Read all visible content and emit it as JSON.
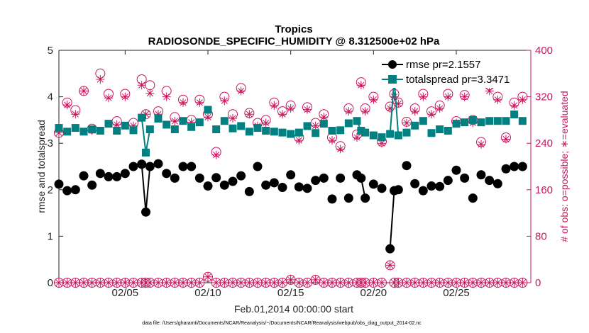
{
  "chart_data": {
    "type": "line",
    "title": "Tropics",
    "subtitle": "RADIOSONDE_SPECIFIC_HUMIDITY @ 8.312500e+02 hPa",
    "xlabel": "Feb.01,2014 00:00:00 start",
    "ylabel": "rmse and totalspread",
    "ylabel_right": "# of obs: o=possible; ∗=evaluated",
    "footnote": "data file: /Users/gharamti/Documents/NCAR/Reanalysis/~/Documents/NCAR/Reanalysis/webpub/obs_diag_output_2014-02.nc",
    "xlim": [
      1,
      29.5
    ],
    "ylim": [
      0,
      5
    ],
    "ylim_right": [
      0,
      400
    ],
    "x_ticks": [
      5,
      10,
      15,
      20,
      25
    ],
    "x_tick_labels": [
      "02/05",
      "02/10",
      "02/15",
      "02/20",
      "02/25"
    ],
    "y_ticks": [
      0,
      1,
      2,
      3,
      4,
      5
    ],
    "y_tick_labels": [
      "0",
      "1",
      "2",
      "3",
      "4",
      "5"
    ],
    "y_right_ticks": [
      0,
      80,
      160,
      240,
      320,
      400
    ],
    "y_right_tick_labels": [
      "0",
      "80",
      "160",
      "240",
      "320",
      "400"
    ],
    "legend_position": "top-right",
    "colors": {
      "rmse": "#000000",
      "spread": "#008080",
      "obs": "#c8175e"
    },
    "x": [
      1.0,
      1.5,
      2.0,
      2.5,
      3.0,
      3.5,
      4.0,
      4.5,
      5.0,
      5.5,
      6.0,
      6.25,
      6.5,
      7.0,
      7.5,
      8.0,
      8.5,
      9.0,
      9.5,
      10.0,
      10.5,
      11.0,
      11.5,
      12.0,
      12.5,
      13.0,
      13.5,
      14.0,
      14.5,
      15.0,
      15.5,
      16.0,
      16.5,
      17.0,
      17.5,
      18.0,
      18.5,
      19.0,
      19.25,
      19.5,
      20.0,
      20.5,
      21.0,
      21.25,
      21.5,
      22.0,
      22.5,
      23.0,
      23.5,
      24.0,
      24.5,
      25.0,
      25.5,
      26.0,
      26.5,
      27.0,
      27.5,
      28.0,
      28.5,
      29.0
    ],
    "series": [
      {
        "name": "rmse pr=2.1557",
        "legend": "rmse pr=2.1557",
        "values": [
          2.12,
          1.98,
          2.0,
          2.3,
          2.1,
          2.35,
          2.28,
          2.28,
          2.35,
          2.5,
          2.55,
          1.52,
          2.5,
          2.56,
          2.35,
          2.25,
          2.5,
          2.5,
          2.25,
          2.08,
          2.26,
          2.1,
          2.18,
          2.3,
          1.96,
          2.5,
          2.1,
          2.15,
          2.05,
          2.32,
          2.06,
          2.03,
          2.2,
          2.25,
          1.8,
          2.25,
          1.82,
          2.32,
          2.25,
          1.82,
          2.12,
          2.03,
          0.73,
          1.98,
          2.0,
          2.52,
          2.13,
          1.98,
          2.08,
          2.07,
          2.2,
          2.42,
          2.25,
          1.82,
          2.32,
          2.2,
          2.13,
          2.45,
          2.5,
          2.5
        ]
      },
      {
        "name": "totalspread pr=3.3471",
        "legend": "totalspread pr=3.3471",
        "values": [
          3.33,
          3.25,
          3.33,
          3.25,
          3.3,
          3.27,
          3.42,
          3.27,
          3.38,
          3.28,
          3.55,
          2.8,
          3.3,
          3.53,
          3.4,
          3.3,
          3.48,
          3.35,
          3.45,
          3.72,
          3.3,
          3.48,
          3.32,
          3.37,
          3.25,
          3.33,
          3.27,
          3.25,
          3.23,
          3.2,
          3.23,
          3.37,
          3.22,
          3.42,
          3.27,
          3.28,
          3.43,
          3.48,
          3.27,
          3.23,
          3.17,
          3.13,
          3.2,
          4.38,
          3.17,
          3.23,
          3.38,
          3.48,
          3.22,
          3.3,
          3.27,
          3.42,
          3.45,
          3.5,
          3.45,
          3.48,
          3.48,
          3.48,
          3.62,
          3.48
        ]
      },
      {
        "name": "possible",
        "axis": "right",
        "values": [
          258,
          310,
          297,
          330,
          265,
          360,
          325,
          278,
          325,
          275,
          350,
          290,
          340,
          295,
          330,
          285,
          315,
          280,
          315,
          290,
          225,
          320,
          290,
          335,
          292,
          275,
          280,
          310,
          295,
          305,
          250,
          302,
          275,
          290,
          250,
          235,
          300,
          255,
          345,
          300,
          320,
          243,
          303,
          325,
          310,
          277,
          300,
          325,
          295,
          305,
          325,
          278,
          323,
          280,
          242,
          340,
          320,
          250,
          310,
          320
        ],
        "values_bottom": [
          0,
          0,
          0,
          0,
          0,
          0,
          0,
          0,
          0,
          0,
          0,
          0,
          0,
          0,
          0,
          0,
          0,
          0,
          0,
          10,
          0,
          0,
          0,
          0,
          0,
          0,
          0,
          0,
          0,
          5,
          0,
          0,
          5,
          0,
          0,
          0,
          0,
          0,
          0,
          0,
          0,
          0,
          30,
          0,
          0,
          0,
          0,
          0,
          0,
          0,
          0,
          0,
          0,
          0,
          0,
          0,
          0,
          0,
          0,
          0
        ]
      },
      {
        "name": "evaluated",
        "axis": "right",
        "values": [
          258,
          306,
          290,
          330,
          262,
          350,
          318,
          272,
          320,
          270,
          340,
          290,
          326,
          290,
          320,
          278,
          310,
          276,
          310,
          285,
          220,
          313,
          283,
          330,
          290,
          270,
          275,
          305,
          290,
          300,
          245,
          298,
          270,
          285,
          245,
          230,
          295,
          250,
          340,
          295,
          315,
          240,
          300,
          320,
          308,
          275,
          295,
          320,
          290,
          300,
          320,
          275,
          320,
          275,
          238,
          330,
          315,
          247,
          305,
          315
        ],
        "values_bottom": [
          0,
          0,
          0,
          0,
          0,
          0,
          0,
          0,
          0,
          0,
          0,
          0,
          0,
          0,
          0,
          0,
          0,
          0,
          0,
          10,
          0,
          0,
          0,
          0,
          0,
          0,
          0,
          0,
          0,
          5,
          0,
          0,
          5,
          0,
          0,
          0,
          0,
          0,
          0,
          0,
          0,
          0,
          30,
          0,
          0,
          0,
          0,
          0,
          0,
          0,
          0,
          0,
          0,
          0,
          0,
          0,
          0,
          0,
          0,
          0
        ]
      }
    ]
  }
}
